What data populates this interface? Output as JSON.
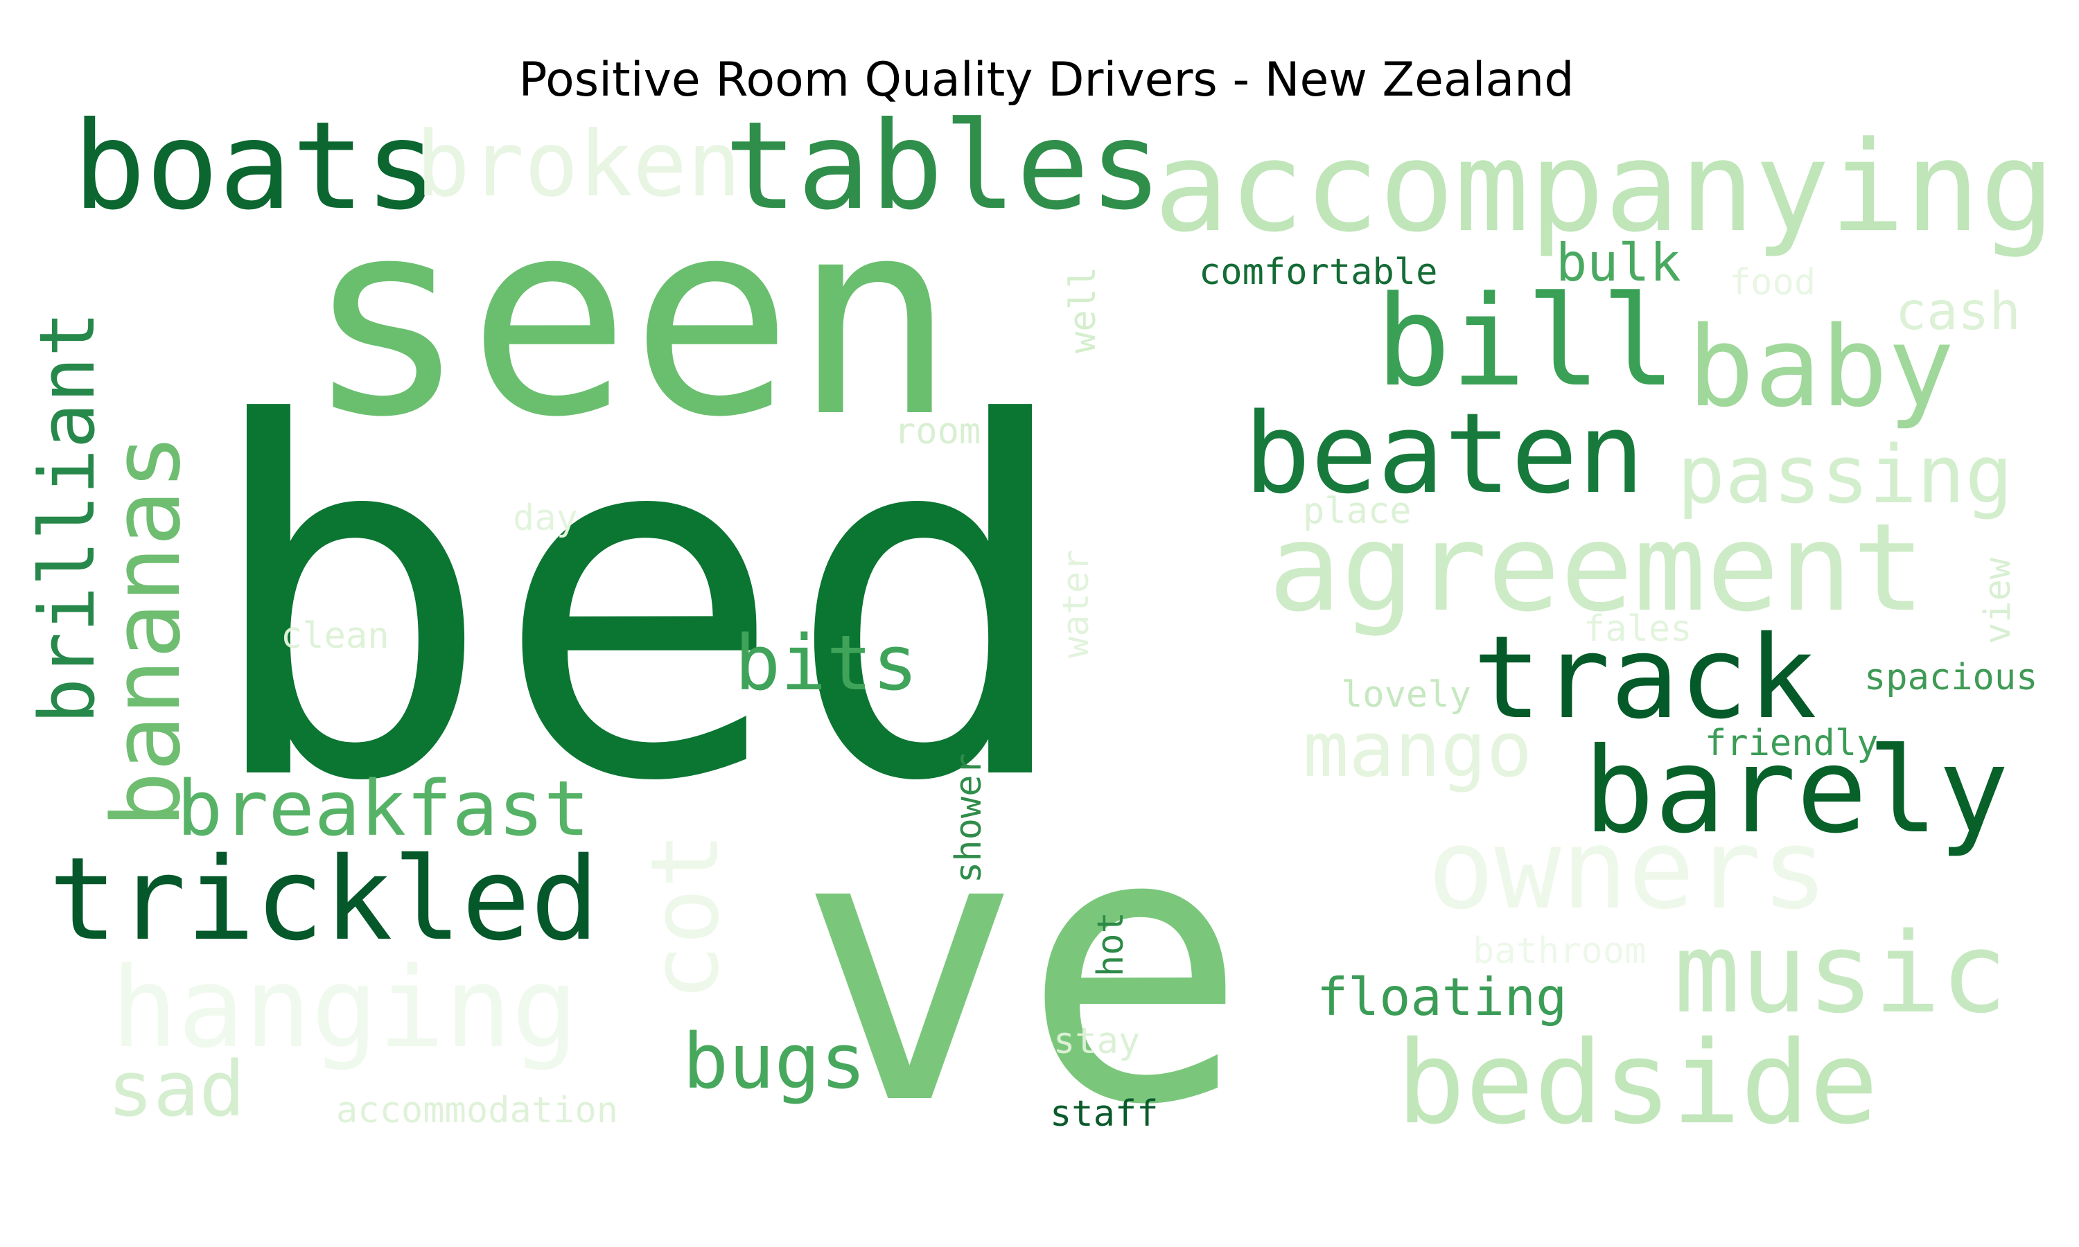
{
  "chart_data": {
    "type": "wordcloud",
    "title": "Positive Room Quality Drivers - New Zealand",
    "colormap": "Greens",
    "words": [
      {
        "text": "bed",
        "color": "#0b7532"
      },
      {
        "text": "seen",
        "color": "#6abf6f"
      },
      {
        "text": "ve",
        "color": "#7ac77c"
      },
      {
        "text": "boats",
        "color": "#0b6630"
      },
      {
        "text": "tables",
        "color": "#2f8e4a"
      },
      {
        "text": "broken",
        "color": "#e7f5e2"
      },
      {
        "text": "accompanying",
        "color": "#bfe5b8"
      },
      {
        "text": "bill",
        "color": "#39a055"
      },
      {
        "text": "baby",
        "color": "#9fd89a"
      },
      {
        "text": "beaten",
        "color": "#177a3c"
      },
      {
        "text": "passing",
        "color": "#d3eecd"
      },
      {
        "text": "agreement",
        "color": "#cdebc6"
      },
      {
        "text": "track",
        "color": "#045a28"
      },
      {
        "text": "barely",
        "color": "#076129"
      },
      {
        "text": "owners",
        "color": "#eef8ea"
      },
      {
        "text": "music",
        "color": "#c6e8c0"
      },
      {
        "text": "bedside",
        "color": "#c0e6b9"
      },
      {
        "text": "mango",
        "color": "#e4f4de"
      },
      {
        "text": "brilliant",
        "color": "#26884a"
      },
      {
        "text": "bananas",
        "color": "#6ebd70"
      },
      {
        "text": "breakfast",
        "color": "#56b266"
      },
      {
        "text": "trickled",
        "color": "#05582a"
      },
      {
        "text": "cot",
        "color": "#eef8ea"
      },
      {
        "text": "hanging",
        "color": "#f0f9ed"
      },
      {
        "text": "sad",
        "color": "#d4eecf"
      },
      {
        "text": "bugs",
        "color": "#47a85d"
      },
      {
        "text": "bits",
        "color": "#3fa45a"
      },
      {
        "text": "comfortable",
        "color": "#146b35"
      },
      {
        "text": "bulk",
        "color": "#4aa960"
      },
      {
        "text": "food",
        "color": "#e9f6e5"
      },
      {
        "text": "cash",
        "color": "#dcf1d6"
      },
      {
        "text": "well",
        "color": "#d4eecd"
      },
      {
        "text": "room",
        "color": "#d8efd2"
      },
      {
        "text": "place",
        "color": "#dcf1d6"
      },
      {
        "text": "day",
        "color": "#e3f4de"
      },
      {
        "text": "clean",
        "color": "#def2d8"
      },
      {
        "text": "water",
        "color": "#e2f3dd"
      },
      {
        "text": "view",
        "color": "#d8efd2"
      },
      {
        "text": "fales",
        "color": "#e3f4de"
      },
      {
        "text": "lovely",
        "color": "#c6e8c0"
      },
      {
        "text": "spacious",
        "color": "#3f9a55"
      },
      {
        "text": "friendly",
        "color": "#3b9c56"
      },
      {
        "text": "shower",
        "color": "#2f8c4a"
      },
      {
        "text": "hot",
        "color": "#2c8a47"
      },
      {
        "text": "floating",
        "color": "#3b9c56"
      },
      {
        "text": "bathroom",
        "color": "#edf8ea"
      },
      {
        "text": "stay",
        "color": "#dbf0d5"
      },
      {
        "text": "staff",
        "color": "#0b5a2c"
      },
      {
        "text": "accommodation",
        "color": "#dff2d9"
      }
    ]
  }
}
